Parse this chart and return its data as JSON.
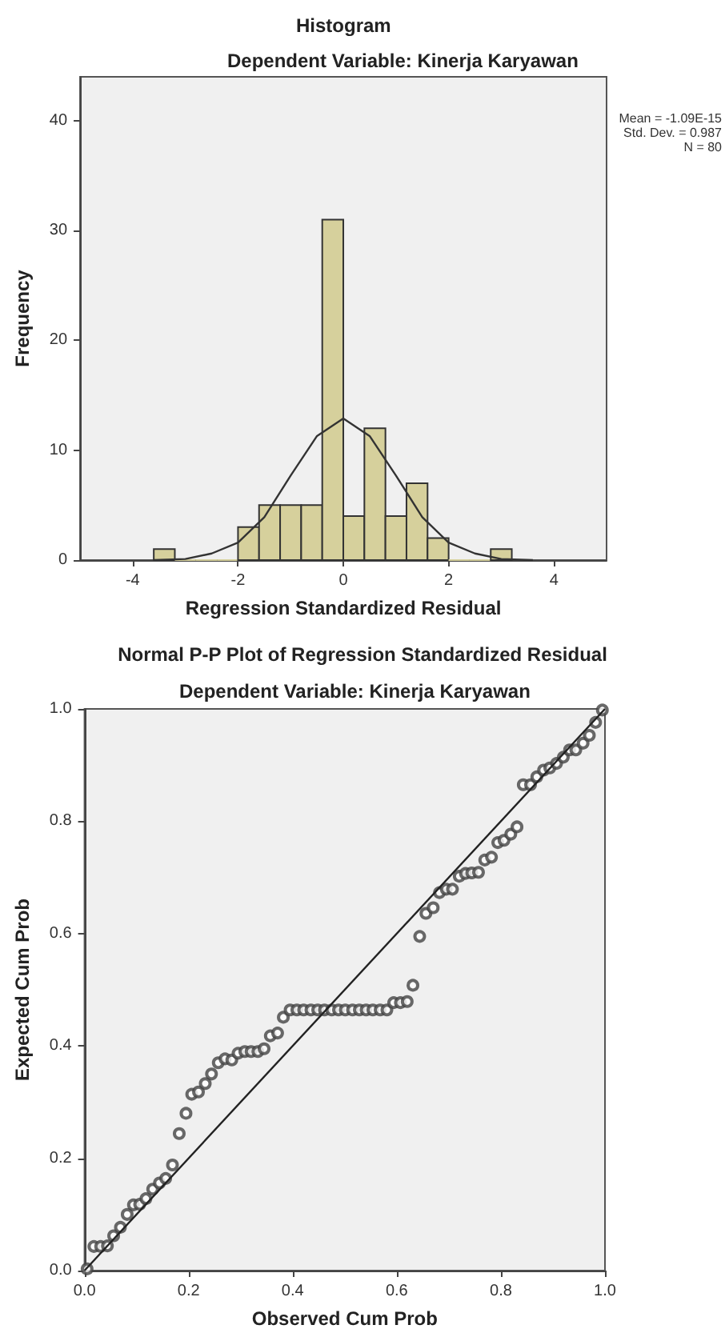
{
  "chart_data": [
    {
      "type": "histogram",
      "title": "Histogram",
      "subtitle": "Dependent Variable: Kinerja Karyawan",
      "xlabel": "Regression Standardized Residual",
      "ylabel": "Frequency",
      "bins": [
        -3.6,
        -3.2,
        -2.8,
        -2.4,
        -2.0,
        -1.6,
        -1.2,
        -0.8,
        -0.4,
        0,
        0.4,
        0.8,
        1.2,
        1.6,
        2.0,
        2.4,
        2.8,
        3.2
      ],
      "values": [
        1,
        0,
        0,
        0,
        3,
        5,
        5,
        5,
        31,
        4,
        12,
        4,
        7,
        2,
        0,
        0,
        1
      ],
      "color": "#d6d09c",
      "series": [
        {
          "type": "line",
          "color": "#333333",
          "x": [
            -3.6,
            -3,
            -2.5,
            -2,
            -1.5,
            -1,
            -0.5,
            0,
            0.5,
            1,
            1.5,
            2,
            2.5,
            3,
            3.6
          ],
          "values": [
            0,
            0.1,
            0.6,
            1.6,
            3.9,
            7.7,
            11.3,
            12.9,
            11.3,
            7.7,
            3.9,
            1.6,
            0.6,
            0.1,
            0
          ]
        }
      ],
      "annotations": [
        "Mean = -1.09E-15",
        "Std. Dev. = 0.987",
        "N = 80"
      ],
      "xlim": [
        -5,
        5
      ],
      "xticks": [
        -4,
        -2,
        0,
        2,
        4
      ],
      "ylim": [
        0,
        44
      ],
      "yticks": [
        0,
        10,
        20,
        30,
        40
      ]
    },
    {
      "type": "scatter",
      "title": "Normal P-P Plot of Regression Standardized Residual",
      "subtitle": "Dependent Variable: Kinerja Karyawan",
      "xlabel": "Observed Cum Prob",
      "ylabel": "Expected Cum Prob",
      "series": [
        {
          "type": "scatter",
          "color": "#444444",
          "marker": "circle",
          "x": [
            0.005,
            0.018,
            0.031,
            0.044,
            0.056,
            0.069,
            0.082,
            0.094,
            0.106,
            0.118,
            0.131,
            0.144,
            0.156,
            0.169,
            0.182,
            0.195,
            0.206,
            0.219,
            0.232,
            0.244,
            0.257,
            0.27,
            0.283,
            0.295,
            0.308,
            0.32,
            0.333,
            0.345,
            0.357,
            0.371,
            0.382,
            0.395,
            0.408,
            0.421,
            0.435,
            0.448,
            0.461,
            0.475,
            0.488,
            0.501,
            0.515,
            0.528,
            0.541,
            0.554,
            0.568,
            0.581,
            0.594,
            0.607,
            0.62,
            0.631,
            0.644,
            0.656,
            0.67,
            0.682,
            0.695,
            0.707,
            0.72,
            0.732,
            0.744,
            0.757,
            0.769,
            0.782,
            0.794,
            0.806,
            0.819,
            0.831,
            0.843,
            0.857,
            0.869,
            0.882,
            0.894,
            0.907,
            0.92,
            0.932,
            0.944,
            0.958,
            0.97,
            0.982,
            0.995
          ],
          "values": [
            0.003,
            0.043,
            0.043,
            0.044,
            0.062,
            0.077,
            0.1,
            0.117,
            0.118,
            0.128,
            0.145,
            0.156,
            0.164,
            0.188,
            0.244,
            0.28,
            0.314,
            0.318,
            0.333,
            0.35,
            0.37,
            0.377,
            0.375,
            0.387,
            0.39,
            0.39,
            0.39,
            0.395,
            0.418,
            0.423,
            0.451,
            0.464,
            0.464,
            0.464,
            0.464,
            0.464,
            0.464,
            0.464,
            0.464,
            0.464,
            0.464,
            0.464,
            0.464,
            0.464,
            0.464,
            0.464,
            0.477,
            0.477,
            0.479,
            0.508,
            0.595,
            0.636,
            0.646,
            0.673,
            0.679,
            0.679,
            0.702,
            0.707,
            0.708,
            0.709,
            0.731,
            0.736,
            0.762,
            0.766,
            0.777,
            0.79,
            0.865,
            0.865,
            0.879,
            0.891,
            0.895,
            0.903,
            0.914,
            0.927,
            0.927,
            0.939,
            0.953,
            0.976,
            0.998
          ]
        },
        {
          "type": "line",
          "color": "#222222",
          "x": [
            0,
            1
          ],
          "values": [
            0,
            1
          ]
        }
      ],
      "xlim": [
        0,
        1
      ],
      "xticks": [
        {
          "value": 0,
          "label": "0.0"
        },
        {
          "value": 0.2,
          "label": "0.2"
        },
        {
          "value": 0.4,
          "label": "0.4"
        },
        {
          "value": 0.6,
          "label": "0.6"
        },
        {
          "value": 0.8,
          "label": "0.8"
        },
        {
          "value": 1,
          "label": "1.0"
        }
      ],
      "ylim": [
        0,
        1
      ],
      "yticks": [
        {
          "value": 0,
          "label": "0.0"
        },
        {
          "value": 0.2,
          "label": "0.2"
        },
        {
          "value": 0.4,
          "label": "0.4"
        },
        {
          "value": 0.6,
          "label": "0.6"
        },
        {
          "value": 0.8,
          "label": "0.8"
        },
        {
          "value": 1,
          "label": "1.0"
        }
      ]
    }
  ]
}
